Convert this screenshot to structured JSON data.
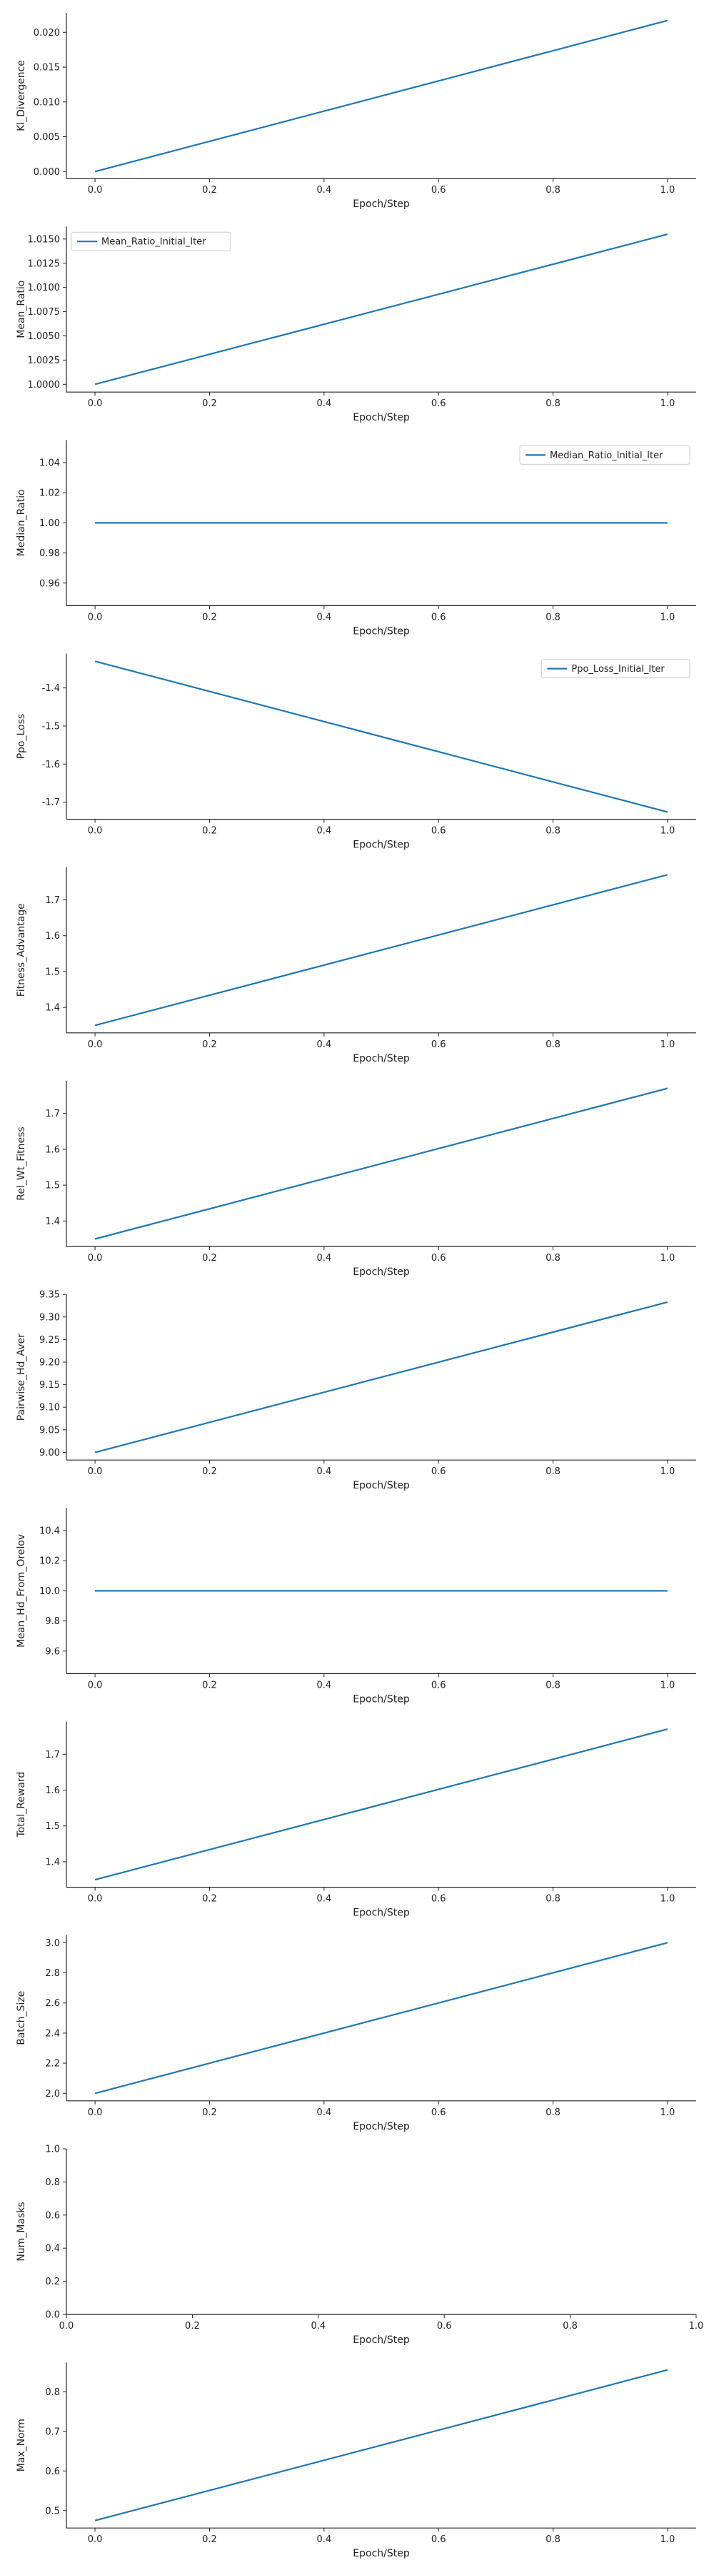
{
  "chart_data": [
    {
      "type": "line",
      "xlabel": "Epoch/Step",
      "ylabel": "Kl_Divergence",
      "x": [
        0.0,
        1.0
      ],
      "series": [
        {
          "values": [
            0.0,
            0.0217
          ]
        }
      ],
      "xlim": [
        -0.05,
        1.05
      ],
      "ylim": [
        -0.001,
        0.0228
      ],
      "xticks": [
        "0.0",
        "0.2",
        "0.4",
        "0.6",
        "0.8",
        "1.0"
      ],
      "yticks": [
        "0.000",
        "0.005",
        "0.010",
        "0.015",
        "0.020"
      ],
      "legend": "none",
      "grid": false
    },
    {
      "type": "line",
      "xlabel": "Epoch/Step",
      "ylabel": "Mean_Ratio",
      "x": [
        0.0,
        1.0
      ],
      "series": [
        {
          "name": "Mean_Ratio_Initial_Iter",
          "values": [
            1.0,
            1.0155
          ]
        }
      ],
      "xlim": [
        -0.05,
        1.05
      ],
      "ylim": [
        0.9992,
        1.0163
      ],
      "xticks": [
        "0.0",
        "0.2",
        "0.4",
        "0.6",
        "0.8",
        "1.0"
      ],
      "yticks": [
        "1.0000",
        "1.0025",
        "1.0050",
        "1.0075",
        "1.0100",
        "1.0125",
        "1.0150"
      ],
      "legend": "upper left",
      "grid": false
    },
    {
      "type": "line",
      "xlabel": "Epoch/Step",
      "ylabel": "Median_Ratio",
      "x": [
        0.0,
        1.0
      ],
      "series": [
        {
          "name": "Median_Ratio_Initial_Iter",
          "values": [
            1.0,
            1.0
          ]
        }
      ],
      "xlim": [
        -0.05,
        1.05
      ],
      "ylim": [
        0.945,
        1.055
      ],
      "xticks": [
        "0.0",
        "0.2",
        "0.4",
        "0.6",
        "0.8",
        "1.0"
      ],
      "yticks": [
        "0.96",
        "0.98",
        "1.00",
        "1.02",
        "1.04"
      ],
      "legend": "upper right",
      "grid": false
    },
    {
      "type": "line",
      "xlabel": "Epoch/Step",
      "ylabel": "Ppo_Loss",
      "x": [
        0.0,
        1.0
      ],
      "series": [
        {
          "name": "Ppo_Loss_Initial_Iter",
          "values": [
            -1.33,
            -1.726
          ]
        }
      ],
      "xlim": [
        -0.05,
        1.05
      ],
      "ylim": [
        -1.745,
        -1.31
      ],
      "xticks": [
        "0.0",
        "0.2",
        "0.4",
        "0.6",
        "0.8",
        "1.0"
      ],
      "yticks": [
        "-1.4",
        "-1.5",
        "-1.6",
        "-1.7"
      ],
      "legend": "upper right",
      "grid": false
    },
    {
      "type": "line",
      "xlabel": "Epoch/Step",
      "ylabel": "Fitness_Advantage",
      "x": [
        0.0,
        1.0
      ],
      "series": [
        {
          "values": [
            1.35,
            1.77
          ]
        }
      ],
      "xlim": [
        -0.05,
        1.05
      ],
      "ylim": [
        1.329,
        1.791
      ],
      "xticks": [
        "0.0",
        "0.2",
        "0.4",
        "0.6",
        "0.8",
        "1.0"
      ],
      "yticks": [
        "1.4",
        "1.5",
        "1.6",
        "1.7"
      ],
      "legend": "none",
      "grid": false
    },
    {
      "type": "line",
      "xlabel": "Epoch/Step",
      "ylabel": "Rel_Wt_Fitness",
      "x": [
        0.0,
        1.0
      ],
      "series": [
        {
          "values": [
            1.35,
            1.77
          ]
        }
      ],
      "xlim": [
        -0.05,
        1.05
      ],
      "ylim": [
        1.329,
        1.791
      ],
      "xticks": [
        "0.0",
        "0.2",
        "0.4",
        "0.6",
        "0.8",
        "1.0"
      ],
      "yticks": [
        "1.4",
        "1.5",
        "1.6",
        "1.7"
      ],
      "legend": "none",
      "grid": false
    },
    {
      "type": "line",
      "xlabel": "Epoch/Step",
      "ylabel": "Pairwise_Hd_Aver",
      "x": [
        0.0,
        1.0
      ],
      "series": [
        {
          "values": [
            9.0,
            9.333
          ]
        }
      ],
      "xlim": [
        -0.05,
        1.05
      ],
      "ylim": [
        8.983,
        9.35
      ],
      "xticks": [
        "0.0",
        "0.2",
        "0.4",
        "0.6",
        "0.8",
        "1.0"
      ],
      "yticks": [
        "9.00",
        "9.05",
        "9.10",
        "9.15",
        "9.20",
        "9.25",
        "9.30",
        "9.35"
      ],
      "legend": "none",
      "grid": false
    },
    {
      "type": "line",
      "xlabel": "Epoch/Step",
      "ylabel": "Mean_Hd_From_Orelov",
      "x": [
        0.0,
        1.0
      ],
      "series": [
        {
          "values": [
            10.0,
            10.0
          ]
        }
      ],
      "xlim": [
        -0.05,
        1.05
      ],
      "ylim": [
        9.45,
        10.55
      ],
      "xticks": [
        "0.0",
        "0.2",
        "0.4",
        "0.6",
        "0.8",
        "1.0"
      ],
      "yticks": [
        "9.6",
        "9.8",
        "10.0",
        "10.2",
        "10.4"
      ],
      "legend": "none",
      "grid": false
    },
    {
      "type": "line",
      "xlabel": "Epoch/Step",
      "ylabel": "Total_Reward",
      "x": [
        0.0,
        1.0
      ],
      "series": [
        {
          "values": [
            1.35,
            1.77
          ]
        }
      ],
      "xlim": [
        -0.05,
        1.05
      ],
      "ylim": [
        1.329,
        1.791
      ],
      "xticks": [
        "0.0",
        "0.2",
        "0.4",
        "0.6",
        "0.8",
        "1.0"
      ],
      "yticks": [
        "1.4",
        "1.5",
        "1.6",
        "1.7"
      ],
      "legend": "none",
      "grid": false
    },
    {
      "type": "line",
      "xlabel": "Epoch/Step",
      "ylabel": "Batch_Size",
      "x": [
        0.0,
        1.0
      ],
      "series": [
        {
          "values": [
            2.0,
            3.0
          ]
        }
      ],
      "xlim": [
        -0.05,
        1.05
      ],
      "ylim": [
        1.95,
        3.05
      ],
      "xticks": [
        "0.0",
        "0.2",
        "0.4",
        "0.6",
        "0.8",
        "1.0"
      ],
      "yticks": [
        "2.0",
        "2.2",
        "2.4",
        "2.6",
        "2.8",
        "3.0"
      ],
      "legend": "none",
      "grid": false
    },
    {
      "type": "line",
      "xlabel": "Epoch/Step",
      "ylabel": "Num_Masks",
      "x": [],
      "series": [],
      "xlim": [
        0.0,
        1.0
      ],
      "ylim": [
        0.0,
        1.0
      ],
      "xticks": [
        "0.0",
        "0.2",
        "0.4",
        "0.6",
        "0.8",
        "1.0"
      ],
      "yticks": [
        "0.0",
        "0.2",
        "0.4",
        "0.6",
        "0.8",
        "1.0"
      ],
      "legend": "none",
      "grid": false
    },
    {
      "type": "line",
      "xlabel": "Epoch/Step",
      "ylabel": "Max_Norm",
      "x": [
        0.0,
        1.0
      ],
      "series": [
        {
          "values": [
            0.475,
            0.855
          ]
        }
      ],
      "xlim": [
        -0.05,
        1.05
      ],
      "ylim": [
        0.456,
        0.874
      ],
      "xticks": [
        "0.0",
        "0.2",
        "0.4",
        "0.6",
        "0.8",
        "1.0"
      ],
      "yticks": [
        "0.5",
        "0.6",
        "0.7",
        "0.8"
      ],
      "legend": "none",
      "grid": false
    }
  ],
  "colors": {
    "series": "#1f77b4",
    "axis": "#222222"
  }
}
